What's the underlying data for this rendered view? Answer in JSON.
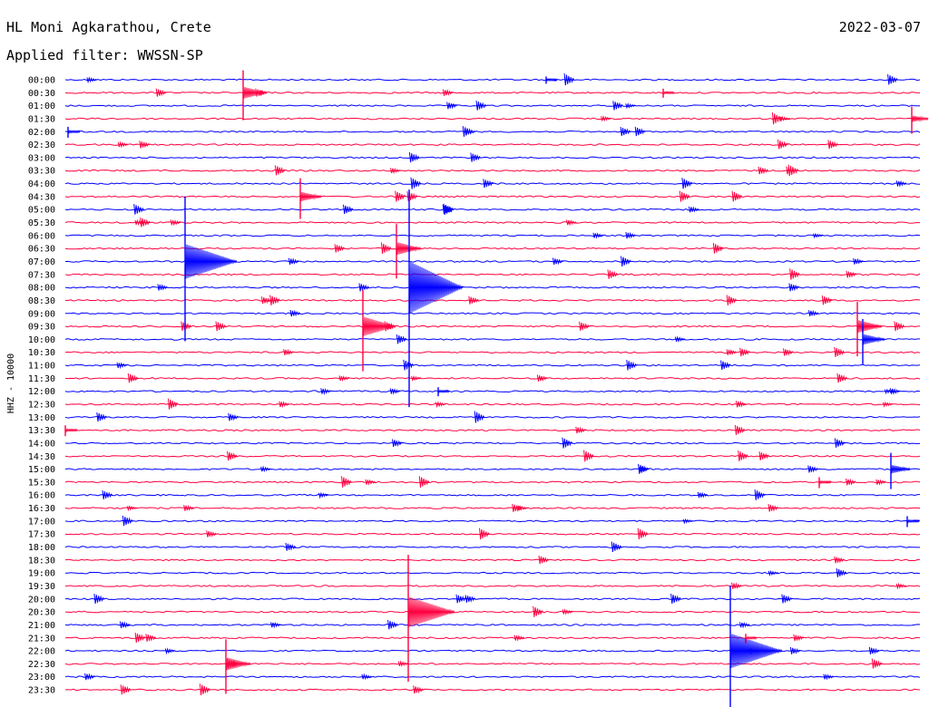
{
  "header": {
    "station": "HL Moni Agkarathou, Crete",
    "filter": "Applied filter: WWSSN-SP",
    "date": "2022-03-07"
  },
  "chart_data": {
    "type": "line",
    "title": "HL Moni Agkarathou, Crete",
    "subtitle": "Applied filter: WWSSN-SP",
    "date": "2022-03-07",
    "channel_label": "HHZ - 10000",
    "row_interval_minutes": 30,
    "rows": [
      "00:00",
      "00:30",
      "01:00",
      "01:30",
      "02:00",
      "02:30",
      "03:00",
      "03:30",
      "04:00",
      "04:30",
      "05:00",
      "05:30",
      "06:00",
      "06:30",
      "07:00",
      "07:30",
      "08:00",
      "08:30",
      "09:00",
      "09:30",
      "10:00",
      "10:30",
      "11:00",
      "11:30",
      "12:00",
      "12:30",
      "13:00",
      "13:30",
      "14:00",
      "14:30",
      "15:00",
      "15:30",
      "16:00",
      "16:30",
      "17:00",
      "17:30",
      "18:00",
      "18:30",
      "19:00",
      "19:30",
      "20:00",
      "20:30",
      "21:00",
      "21:30",
      "22:00",
      "22:30",
      "23:00",
      "23:30"
    ],
    "colors": [
      "#0000ff",
      "#ff0040"
    ],
    "grid": false
  }
}
